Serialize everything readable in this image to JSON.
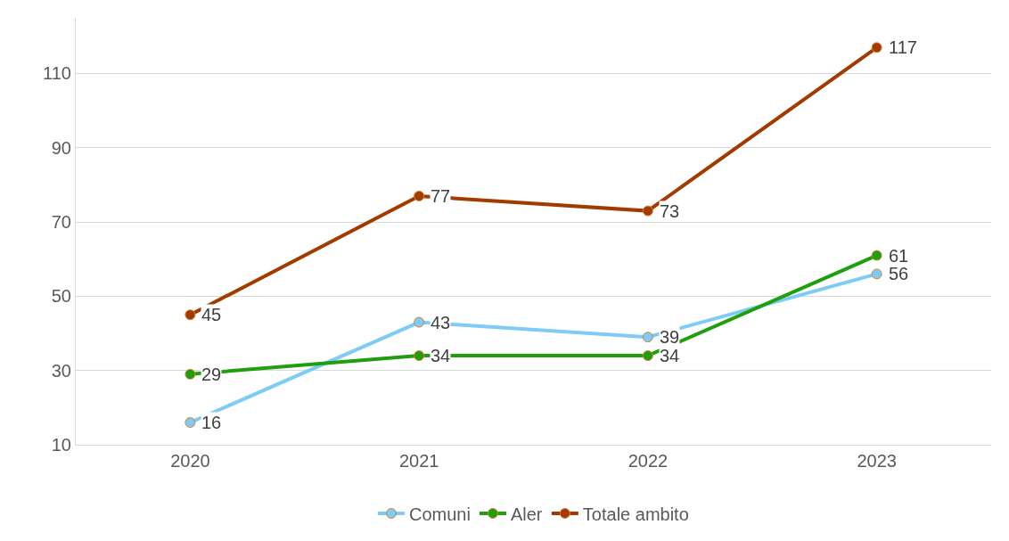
{
  "chart_data": {
    "type": "line",
    "categories": [
      "2020",
      "2021",
      "2022",
      "2023"
    ],
    "series": [
      {
        "name": "Comuni",
        "color": "#7ecbf5",
        "values": [
          16,
          43,
          39,
          56
        ]
      },
      {
        "name": "Aler",
        "color": "#1f9e0e",
        "values": [
          29,
          34,
          34,
          61
        ]
      },
      {
        "name": "Totale ambito",
        "color": "#a33b00",
        "values": [
          45,
          77,
          73,
          117
        ]
      }
    ],
    "ylim": [
      10,
      125
    ],
    "yticks": [
      10,
      30,
      50,
      70,
      90,
      110
    ],
    "grid": "y",
    "legend": "bottom",
    "marker": "circle",
    "line_style": "solid",
    "data_labels": true
  }
}
